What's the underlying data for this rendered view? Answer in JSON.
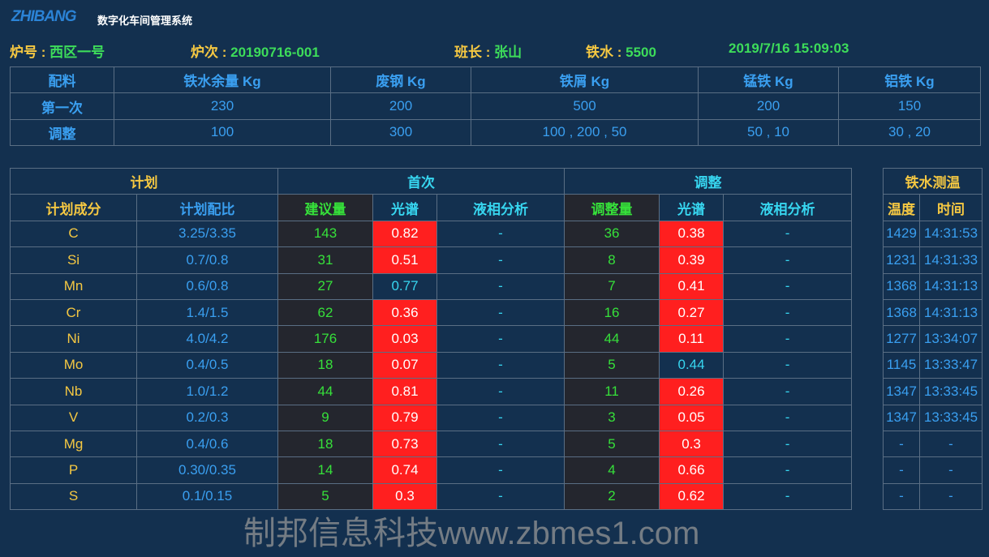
{
  "header": {
    "logo": "ZHIBANG",
    "system_title": "数字化车间管理系统"
  },
  "info": {
    "furnace_label": "炉号",
    "furnace": "西区一号",
    "heat_label": "炉次",
    "heat": "20190716-001",
    "leader_label": "班长",
    "leader": "张山",
    "iron_label": "铁水",
    "iron": "5500",
    "datetime": "2019/7/16 15:09:03"
  },
  "batch": {
    "headers": [
      "配料",
      "铁水余量 Kg",
      "废钢 Kg",
      "铁屑 Kg",
      "锰铁 Kg",
      "铝铁 Kg"
    ],
    "rows": [
      [
        "第一次",
        "230",
        "200",
        "500",
        "200",
        "150"
      ],
      [
        "调整",
        "100",
        "300",
        "100 , 200 , 50",
        "50 , 10",
        "30 , 20"
      ]
    ]
  },
  "composition": {
    "group_headers": [
      "计划",
      "首次",
      "调整"
    ],
    "sub_headers": [
      "计划成分",
      "计划配比",
      "建议量",
      "光谱",
      "液相分析",
      "调整量",
      "光谱",
      "液相分析"
    ],
    "rows": [
      {
        "el": "C",
        "ratio": "3.25/3.35",
        "sug": "143",
        "spec1": "0.82",
        "spec1_alert": true,
        "liq1": "-",
        "adj": "36",
        "spec2": "0.38",
        "spec2_alert": true,
        "liq2": "-"
      },
      {
        "el": "Si",
        "ratio": "0.7/0.8",
        "sug": "31",
        "spec1": "0.51",
        "spec1_alert": true,
        "liq1": "-",
        "adj": "8",
        "spec2": "0.39",
        "spec2_alert": true,
        "liq2": "-"
      },
      {
        "el": "Mn",
        "ratio": "0.6/0.8",
        "sug": "27",
        "spec1": "0.77",
        "spec1_alert": false,
        "liq1": "-",
        "adj": "7",
        "spec2": "0.41",
        "spec2_alert": true,
        "liq2": "-"
      },
      {
        "el": "Cr",
        "ratio": "1.4/1.5",
        "sug": "62",
        "spec1": "0.36",
        "spec1_alert": true,
        "liq1": "-",
        "adj": "16",
        "spec2": "0.27",
        "spec2_alert": true,
        "liq2": "-"
      },
      {
        "el": "Ni",
        "ratio": "4.0/4.2",
        "sug": "176",
        "spec1": "0.03",
        "spec1_alert": true,
        "liq1": "-",
        "adj": "44",
        "spec2": "0.11",
        "spec2_alert": true,
        "liq2": "-"
      },
      {
        "el": "Mo",
        "ratio": "0.4/0.5",
        "sug": "18",
        "spec1": "0.07",
        "spec1_alert": true,
        "liq1": "-",
        "adj": "5",
        "spec2": "0.44",
        "spec2_alert": false,
        "liq2": "-"
      },
      {
        "el": "Nb",
        "ratio": "1.0/1.2",
        "sug": "44",
        "spec1": "0.81",
        "spec1_alert": true,
        "liq1": "-",
        "adj": "11",
        "spec2": "0.26",
        "spec2_alert": true,
        "liq2": "-"
      },
      {
        "el": "V",
        "ratio": "0.2/0.3",
        "sug": "9",
        "spec1": "0.79",
        "spec1_alert": true,
        "liq1": "-",
        "adj": "3",
        "spec2": "0.05",
        "spec2_alert": true,
        "liq2": "-"
      },
      {
        "el": "Mg",
        "ratio": "0.4/0.6",
        "sug": "18",
        "spec1": "0.73",
        "spec1_alert": true,
        "liq1": "-",
        "adj": "5",
        "spec2": "0.3",
        "spec2_alert": true,
        "liq2": "-"
      },
      {
        "el": "P",
        "ratio": "0.30/0.35",
        "sug": "14",
        "spec1": "0.74",
        "spec1_alert": true,
        "liq1": "-",
        "adj": "4",
        "spec2": "0.66",
        "spec2_alert": true,
        "liq2": "-"
      },
      {
        "el": "S",
        "ratio": "0.1/0.15",
        "sug": "5",
        "spec1": "0.3",
        "spec1_alert": true,
        "liq1": "-",
        "adj": "2",
        "spec2": "0.62",
        "spec2_alert": true,
        "liq2": "-"
      }
    ]
  },
  "temperature": {
    "title": "铁水测温",
    "headers": [
      "温度",
      "时间"
    ],
    "rows": [
      [
        "1429",
        "14:31:53"
      ],
      [
        "1231",
        "14:31:33"
      ],
      [
        "1368",
        "14:31:13"
      ],
      [
        "1368",
        "14:31:13"
      ],
      [
        "1277",
        "13:34:07"
      ],
      [
        "1145",
        "13:33:47"
      ],
      [
        "1347",
        "13:33:45"
      ],
      [
        "1347",
        "13:33:45"
      ],
      [
        "-",
        "-"
      ],
      [
        "-",
        "-"
      ],
      [
        "-",
        "-"
      ]
    ]
  },
  "watermark": "制邦信息科技www.zbmes1.com",
  "colors": {
    "background": "#13304f",
    "alert": "#ff1f1f",
    "label": "#f5c842",
    "value": "#36e03a",
    "accent": "#3a9ff0"
  }
}
